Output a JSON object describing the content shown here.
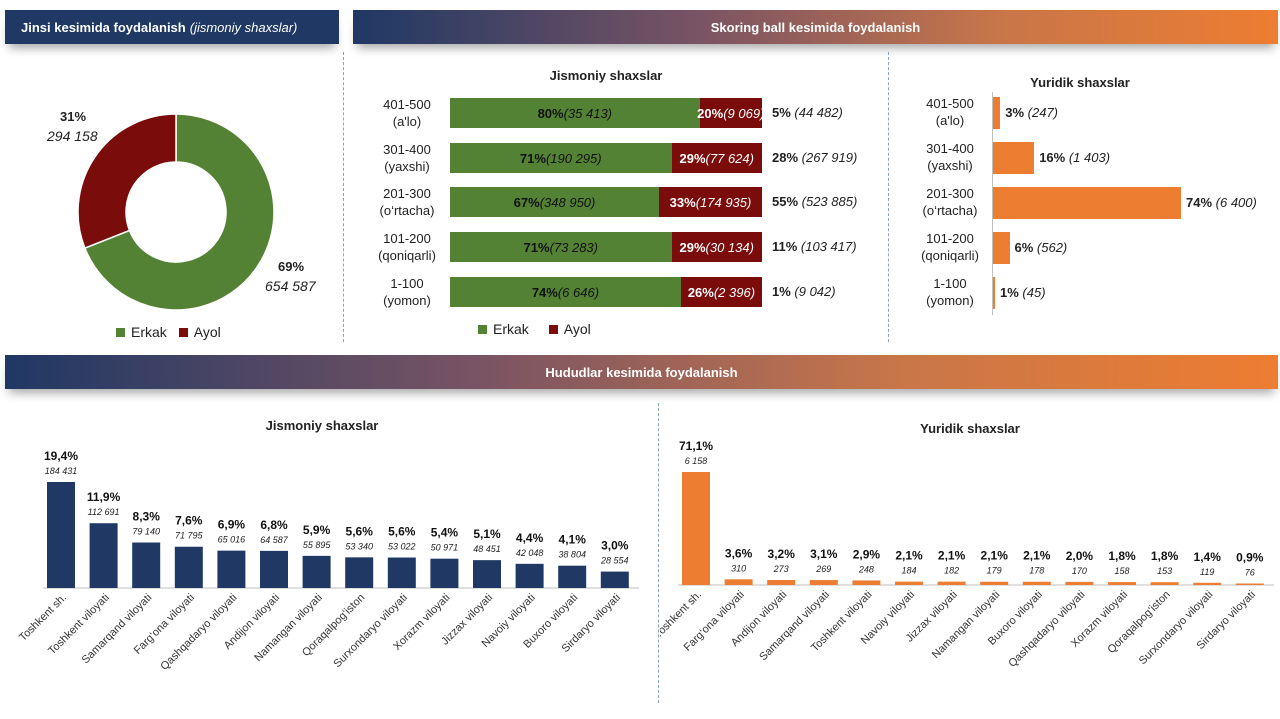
{
  "banners": {
    "gender_title": "Jinsi kesimida foydalanish",
    "gender_subtitle": "(jismoniy shaxslar)",
    "scoring_title": "Skoring ball kesimida foydalanish",
    "regions_title": "Hududlar kesimida foydalanish"
  },
  "colors": {
    "male": "#548235",
    "female": "#7b0c0c",
    "navy": "#1f3864",
    "orange": "#ed7d31"
  },
  "legend": {
    "male": "Erkak",
    "female": "Ayol"
  },
  "chart_data": [
    {
      "id": "gender_donut",
      "type": "pie",
      "labels": [
        "Erkak",
        "Ayol"
      ],
      "values": [
        654587,
        294158
      ],
      "percent_labels": [
        "69%",
        "31%"
      ],
      "count_labels": [
        "654 587",
        "294 158"
      ],
      "legend_position": "bottom"
    },
    {
      "id": "scoring_individuals",
      "type": "bar",
      "orientation": "horizontal",
      "stacked": true,
      "title": "Jismoniy shaxslar",
      "categories": [
        {
          "range": "401-500",
          "grade": "(a'lo)"
        },
        {
          "range": "301-400",
          "grade": "(yaxshi)"
        },
        {
          "range": "201-300",
          "grade": "(o‘rtacha)"
        },
        {
          "range": "101-200",
          "grade": "(qoniqarli)"
        },
        {
          "range": "1-100",
          "grade": "(yomon)"
        }
      ],
      "series": [
        {
          "name": "Erkak",
          "percents": [
            "80%",
            "71%",
            "67%",
            "71%",
            "74%"
          ],
          "counts": [
            "(35 413)",
            "(190 295)",
            "(348 950)",
            "(73 283)",
            "(6 646)"
          ],
          "values": [
            80,
            71,
            67,
            71,
            74
          ]
        },
        {
          "name": "Ayol",
          "percents": [
            "20%",
            "29%",
            "33%",
            "29%",
            "26%"
          ],
          "counts": [
            "(9 069)",
            "(77 624)",
            "(174 935)",
            "(30 134)",
            "(2 396)"
          ],
          "values": [
            20,
            29,
            33,
            29,
            26
          ]
        }
      ],
      "totals": {
        "percents": [
          "5%",
          "28%",
          "55%",
          "11%",
          "1%"
        ],
        "counts": [
          "(44 482)",
          "(267 919)",
          "(523 885)",
          "(103 417)",
          "(9 042)"
        ]
      },
      "legend_position": "bottom"
    },
    {
      "id": "scoring_legal",
      "type": "bar",
      "orientation": "horizontal",
      "title": "Yuridik shaxslar",
      "categories": [
        {
          "range": "401-500",
          "grade": "(a'lo)"
        },
        {
          "range": "301-400",
          "grade": "(yaxshi)"
        },
        {
          "range": "201-300",
          "grade": "(o‘rtacha)"
        },
        {
          "range": "101-200",
          "grade": "(qoniqarli)"
        },
        {
          "range": "1-100",
          "grade": "(yomon)"
        }
      ],
      "values": [
        247,
        1403,
        6400,
        562,
        45
      ],
      "percents": [
        "3%",
        "16%",
        "74%",
        "6%",
        "1%"
      ],
      "counts": [
        "(247)",
        "(1 403)",
        "(6 400)",
        "(562)",
        "(45)"
      ]
    },
    {
      "id": "regions_individuals",
      "type": "bar",
      "title": "Jismoniy shaxslar",
      "categories": [
        "Toshkent sh.",
        "Toshkent viloyati",
        "Samarqand viloyati",
        "Farg‘ona viloyati",
        "Qashqadaryo viloyati",
        "Andijon viloyati",
        "Namangan viloyati",
        "Qoraqalpog‘iston",
        "Surxondaryo viloyati",
        "Xorazm viloyati",
        "Jizzax viloyati",
        "Navoiy viloyati",
        "Buxoro viloyati",
        "Sirdaryo viloyati"
      ],
      "values": [
        184431,
        112691,
        79140,
        71795,
        65016,
        64587,
        55895,
        53340,
        53022,
        50971,
        48451,
        42048,
        38804,
        28554
      ],
      "percents": [
        "19,4%",
        "11,9%",
        "8,3%",
        "7,6%",
        "6,9%",
        "6,8%",
        "5,9%",
        "5,6%",
        "5,6%",
        "5,4%",
        "5,1%",
        "4,4%",
        "4,1%",
        "3,0%"
      ],
      "value_labels": [
        "184 431",
        "112 691",
        "79 140",
        "71 795",
        "65 016",
        "64 587",
        "55 895",
        "53 340",
        "53 022",
        "50 971",
        "48 451",
        "42 048",
        "38 804",
        "28 554"
      ]
    },
    {
      "id": "regions_legal",
      "type": "bar",
      "title": "Yuridik shaxslar",
      "categories": [
        "Toshkent sh.",
        "Farg‘ona viloyati",
        "Andijon viloyati",
        "Samarqand viloyati",
        "Toshkent viloyati",
        "Navoiy viloyati",
        "Jizzax viloyati",
        "Namangan viloyati",
        "Buxoro viloyati",
        "Qashqadaryo viloyati",
        "Xorazm viloyati",
        "Qoraqalpog‘iston",
        "Surxondaryo viloyati",
        "Sirdaryo viloyati"
      ],
      "values": [
        6158,
        310,
        273,
        269,
        248,
        184,
        182,
        179,
        178,
        170,
        158,
        153,
        119,
        76
      ],
      "percents": [
        "71,1%",
        "3,6%",
        "3,2%",
        "3,1%",
        "2,9%",
        "2,1%",
        "2,1%",
        "2,1%",
        "2,1%",
        "2,0%",
        "1,8%",
        "1,8%",
        "1,4%",
        "0,9%"
      ],
      "value_labels": [
        "6 158",
        "310",
        "273",
        "269",
        "248",
        "184",
        "182",
        "179",
        "178",
        "170",
        "158",
        "153",
        "119",
        "76"
      ]
    }
  ]
}
